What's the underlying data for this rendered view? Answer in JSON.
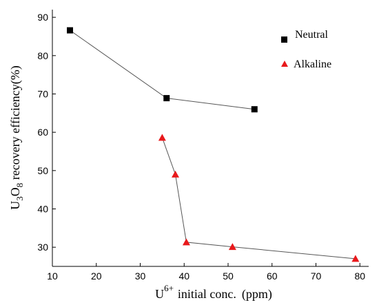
{
  "chart_data": {
    "type": "scatter",
    "title": "",
    "xlabel": {
      "base": "U",
      "superscript": "6+",
      "text": "initial conc.",
      "unit": "(ppm)"
    },
    "ylabel": {
      "p1": "U",
      "sub1": "3",
      "p2": "O",
      "sub2": "8",
      "p3": " recovery efficiency(%)"
    },
    "xlim": [
      10,
      82
    ],
    "ylim": [
      25,
      92
    ],
    "xticks": [
      10,
      20,
      30,
      40,
      50,
      60,
      70,
      80
    ],
    "yticks": [
      30,
      40,
      50,
      60,
      70,
      80,
      90
    ],
    "grid": false,
    "legend_position": "top-right",
    "series": [
      {
        "name": "Neutral",
        "marker": "square",
        "color": "#000000",
        "points": [
          {
            "x": 14,
            "y": 86.6
          },
          {
            "x": 36,
            "y": 68.9
          },
          {
            "x": 56,
            "y": 66.0
          }
        ]
      },
      {
        "name": "Alkaline",
        "marker": "triangle",
        "color": "#e8191c",
        "points": [
          {
            "x": 35,
            "y": 58.6
          },
          {
            "x": 38,
            "y": 49.0
          },
          {
            "x": 40.5,
            "y": 31.3
          },
          {
            "x": 51,
            "y": 30.1
          },
          {
            "x": 79,
            "y": 27.0
          }
        ]
      }
    ]
  }
}
